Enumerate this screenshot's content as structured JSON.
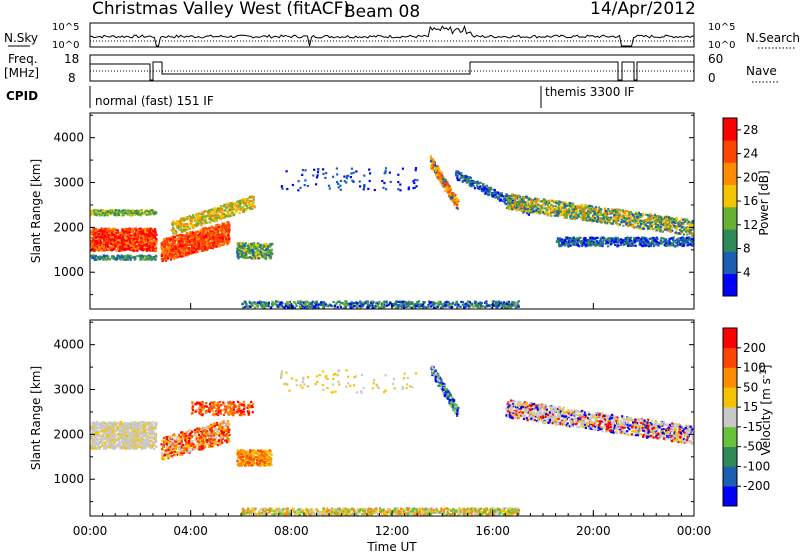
{
  "header": {
    "station": "Christmas Valley West (fitACF)",
    "beam": "Beam 08",
    "date": "14/Apr/2012"
  },
  "strips": {
    "nsky": {
      "left_label": "N.Sky",
      "left_ticks": [
        "10^5",
        "10^0"
      ],
      "right_ticks": [
        "10^5",
        "10^0"
      ],
      "right_label": "N.Search"
    },
    "freq": {
      "left_label_1": "Freq.",
      "left_label_2": "[MHz]",
      "left_ticks": [
        "18",
        "8"
      ],
      "right_ticks": [
        "60",
        "0"
      ],
      "right_label": "Nave"
    },
    "cpid": {
      "label": "CPID",
      "mode_1": "normal (fast) 151 IF",
      "mode_2": "themis 3300 IF"
    }
  },
  "chart_data": [
    {
      "type": "heatmap",
      "title": "",
      "ylabel": "Slant Range [km]",
      "yticks": [
        1000,
        2000,
        3000,
        4000
      ],
      "ylim": [
        180,
        4550
      ],
      "xlim_hours": [
        0,
        24
      ],
      "colorbar": {
        "label": "Power [dB]",
        "ticks": [
          4,
          8,
          12,
          16,
          20,
          24,
          28
        ],
        "range": [
          0,
          30
        ],
        "colors": [
          "#0000ff",
          "#1a5fb4",
          "#2e8b57",
          "#66b032",
          "#f5c400",
          "#ff8c00",
          "#ff4500",
          "#ff0000"
        ]
      }
    },
    {
      "type": "heatmap",
      "title": "",
      "ylabel": "Slant Range [km]",
      "xlabel": "Time UT",
      "yticks": [
        1000,
        2000,
        3000,
        4000
      ],
      "ylim": [
        180,
        4550
      ],
      "xlim_hours": [
        0,
        24
      ],
      "xticks": [
        "00:00",
        "04:00",
        "08:00",
        "12:00",
        "16:00",
        "20:00",
        "00:00"
      ],
      "colorbar": {
        "label": "Velocity [m s^-1]",
        "ticks": [
          200,
          100,
          50,
          15,
          -15,
          -50,
          -100,
          -200
        ],
        "colors": [
          "#0000ff",
          "#1a5fb4",
          "#2e8b57",
          "#66c23a",
          "#c8c8c8",
          "#f5c400",
          "#ff8c00",
          "#ff4500",
          "#ff0000"
        ]
      }
    }
  ]
}
